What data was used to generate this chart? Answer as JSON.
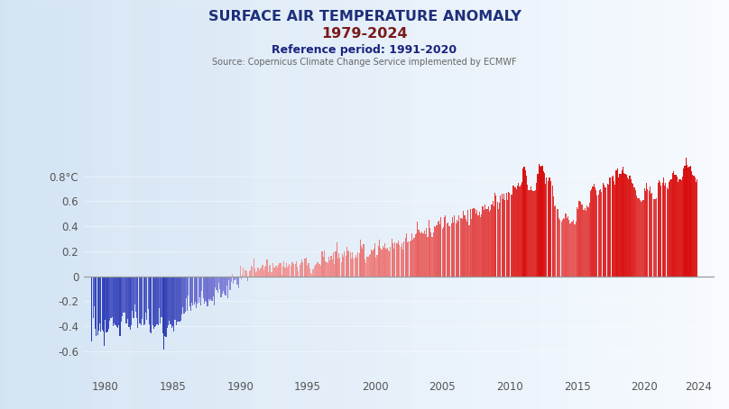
{
  "title_line1": "SURFACE AIR TEMPERATURE ANOMALY",
  "title_line2": "1979-2024",
  "subtitle": "Reference period: 1991-2020",
  "source": "Source: Copernicus Climate Change Service implemented by ECMWF",
  "yticks": [
    0.8,
    0.6,
    0.4,
    0.2,
    0,
    -0.2,
    -0.4,
    -0.6
  ],
  "ytick_labels": [
    "0.8°C",
    "0.6",
    "0.4",
    "0.2",
    "0",
    "-0.2",
    "-0.4",
    "-0.6"
  ],
  "xtick_years": [
    1980,
    1985,
    1990,
    1995,
    2000,
    2005,
    2010,
    2015,
    2020,
    2024
  ],
  "xlim": [
    1978.4,
    2025.2
  ],
  "ylim": [
    -0.8,
    1.0
  ],
  "background_color": "#cdd9e3",
  "title_color1": "#1e2f7a",
  "title_color2": "#7a1a1a",
  "subtitle_color": "#1a237e",
  "source_color": "#666666",
  "zero_line_color": "#999999",
  "start_year": 1979,
  "start_month": 1,
  "anomaly_data": [
    -0.521,
    -0.336,
    -0.238,
    -0.418,
    -0.478,
    -0.471,
    -0.432,
    -0.379,
    -0.445,
    -0.428,
    -0.445,
    -0.556,
    -0.349,
    -0.452,
    -0.445,
    -0.417,
    -0.352,
    -0.331,
    -0.326,
    -0.399,
    -0.374,
    -0.391,
    -0.408,
    -0.413,
    -0.392,
    -0.478,
    -0.361,
    -0.322,
    -0.291,
    -0.29,
    -0.375,
    -0.38,
    -0.34,
    -0.408,
    -0.427,
    -0.392,
    -0.274,
    -0.331,
    -0.227,
    -0.282,
    -0.333,
    -0.413,
    -0.374,
    -0.375,
    -0.39,
    -0.343,
    -0.395,
    -0.385,
    -0.291,
    -0.348,
    -0.262,
    -0.382,
    -0.452,
    -0.456,
    -0.392,
    -0.42,
    -0.406,
    -0.398,
    -0.387,
    -0.395,
    -0.253,
    -0.377,
    -0.327,
    -0.459,
    -0.587,
    -0.477,
    -0.485,
    -0.415,
    -0.392,
    -0.358,
    -0.384,
    -0.416,
    -0.397,
    -0.441,
    -0.347,
    -0.388,
    -0.361,
    -0.364,
    -0.365,
    -0.352,
    -0.305,
    -0.244,
    -0.295,
    -0.286,
    -0.173,
    -0.273,
    -0.152,
    -0.243,
    -0.273,
    -0.211,
    -0.235,
    -0.227,
    -0.202,
    -0.254,
    -0.218,
    -0.214,
    -0.165,
    -0.233,
    -0.116,
    -0.177,
    -0.219,
    -0.194,
    -0.203,
    -0.241,
    -0.183,
    -0.2,
    -0.181,
    -0.199,
    -0.163,
    -0.232,
    -0.09,
    -0.107,
    -0.133,
    -0.052,
    -0.104,
    -0.168,
    -0.139,
    -0.117,
    -0.137,
    -0.152,
    -0.074,
    -0.178,
    -0.032,
    -0.107,
    -0.043,
    0.021,
    -0.06,
    -0.03,
    -0.022,
    -0.067,
    -0.064,
    -0.099,
    0.087,
    -0.026,
    0.01,
    0.068,
    0.048,
    0.046,
    0.043,
    -0.04,
    0.044,
    0.051,
    0.082,
    0.077,
    0.141,
    0.065,
    0.036,
    0.043,
    0.067,
    0.048,
    0.066,
    0.068,
    0.088,
    0.046,
    0.074,
    0.085,
    0.133,
    0.034,
    0.081,
    0.09,
    0.031,
    0.106,
    0.072,
    0.07,
    0.082,
    0.07,
    0.095,
    0.108,
    0.104,
    0.011,
    0.075,
    0.119,
    0.072,
    0.109,
    0.072,
    0.083,
    0.099,
    0.085,
    0.114,
    0.116,
    0.096,
    0.098,
    0.121,
    0.075,
    0.042,
    0.091,
    0.104,
    0.138,
    0.112,
    0.141,
    0.14,
    0.149,
    0.084,
    0.105,
    0.062,
    0.025,
    0.021,
    0.057,
    0.077,
    0.091,
    0.096,
    0.111,
    0.097,
    0.098,
    0.086,
    0.2,
    0.157,
    0.205,
    0.124,
    0.11,
    0.106,
    0.153,
    0.13,
    0.161,
    0.132,
    0.191,
    0.1,
    0.203,
    0.27,
    0.145,
    0.185,
    0.148,
    0.115,
    0.181,
    0.157,
    0.201,
    0.163,
    0.235,
    0.2,
    0.209,
    0.189,
    0.143,
    0.195,
    0.141,
    0.149,
    0.169,
    0.148,
    0.195,
    0.188,
    0.295,
    0.243,
    0.218,
    0.258,
    0.132,
    0.109,
    0.156,
    0.159,
    0.174,
    0.18,
    0.211,
    0.206,
    0.22,
    0.268,
    0.15,
    0.173,
    0.243,
    0.29,
    0.23,
    0.213,
    0.246,
    0.229,
    0.264,
    0.223,
    0.231,
    0.205,
    0.198,
    0.234,
    0.301,
    0.263,
    0.22,
    0.274,
    0.266,
    0.267,
    0.284,
    0.251,
    0.236,
    0.263,
    0.211,
    0.282,
    0.31,
    0.341,
    0.274,
    0.279,
    0.28,
    0.287,
    0.343,
    0.29,
    0.305,
    0.337,
    0.344,
    0.44,
    0.375,
    0.354,
    0.346,
    0.356,
    0.347,
    0.364,
    0.34,
    0.388,
    0.318,
    0.454,
    0.386,
    0.349,
    0.318,
    0.354,
    0.401,
    0.392,
    0.407,
    0.439,
    0.444,
    0.413,
    0.474,
    0.381,
    0.393,
    0.475,
    0.488,
    0.426,
    0.43,
    0.399,
    0.404,
    0.423,
    0.476,
    0.427,
    0.489,
    0.423,
    0.452,
    0.438,
    0.488,
    0.467,
    0.467,
    0.461,
    0.524,
    0.488,
    0.458,
    0.434,
    0.53,
    0.407,
    0.542,
    0.458,
    0.536,
    0.547,
    0.535,
    0.501,
    0.531,
    0.491,
    0.517,
    0.477,
    0.492,
    0.558,
    0.53,
    0.572,
    0.539,
    0.541,
    0.56,
    0.514,
    0.534,
    0.577,
    0.604,
    0.561,
    0.67,
    0.646,
    0.595,
    0.536,
    0.588,
    0.644,
    0.66,
    0.619,
    0.664,
    0.613,
    0.666,
    0.614,
    0.677,
    0.667,
    0.657,
    0.651,
    0.728,
    0.724,
    0.714,
    0.697,
    0.727,
    0.747,
    0.716,
    0.736,
    0.754,
    0.865,
    0.875,
    0.847,
    0.802,
    0.731,
    0.692,
    0.687,
    0.719,
    0.691,
    0.685,
    0.684,
    0.688,
    0.748,
    0.823,
    0.896,
    0.887,
    0.879,
    0.888,
    0.843,
    0.826,
    0.737,
    0.794,
    0.762,
    0.791,
    0.788,
    0.762,
    0.729,
    0.642,
    0.56,
    0.566,
    0.54,
    0.539,
    0.47,
    0.45,
    0.436,
    0.453,
    0.466,
    0.461,
    0.505,
    0.467,
    0.484,
    0.454,
    0.421,
    0.434,
    0.437,
    0.455,
    0.416,
    0.436,
    0.55,
    0.538,
    0.605,
    0.594,
    0.577,
    0.573,
    0.532,
    0.544,
    0.527,
    0.568,
    0.554,
    0.591,
    0.681,
    0.699,
    0.72,
    0.741,
    0.711,
    0.691,
    0.646,
    0.657,
    0.687,
    0.694,
    0.677,
    0.746,
    0.733,
    0.708,
    0.715,
    0.738,
    0.735,
    0.789,
    0.791,
    0.796,
    0.802,
    0.763,
    0.734,
    0.845,
    0.866,
    0.791,
    0.821,
    0.82,
    0.847,
    0.879,
    0.824,
    0.822,
    0.812,
    0.789,
    0.775,
    0.808,
    0.775,
    0.749,
    0.742,
    0.714,
    0.691,
    0.65,
    0.624,
    0.628,
    0.609,
    0.597,
    0.602,
    0.614,
    0.707,
    0.686,
    0.75,
    0.697,
    0.68,
    0.718,
    0.658,
    0.665,
    0.621,
    0.619,
    0.619,
    0.627,
    0.751,
    0.769,
    0.754,
    0.726,
    0.744,
    0.791,
    0.727,
    0.744,
    0.715,
    0.697,
    0.752,
    0.77,
    0.779,
    0.828,
    0.841,
    0.811,
    0.811,
    0.801,
    0.756,
    0.778,
    0.776,
    0.771,
    0.798,
    0.866,
    0.883,
    0.949,
    0.893,
    0.872,
    0.874,
    0.885,
    0.84,
    0.816,
    0.802,
    0.791,
    0.757,
    0.779
  ]
}
